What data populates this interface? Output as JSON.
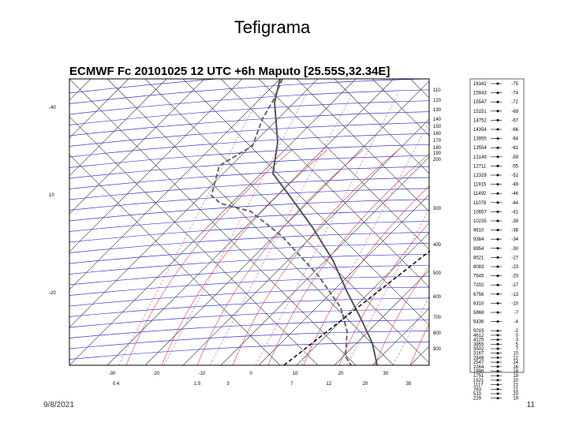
{
  "slide": {
    "title": "Tefigrama",
    "date": "9/8/2021",
    "number": "11"
  },
  "colors": {
    "isobar": "#3b3bc8",
    "isotherm": "#333333",
    "dry_adiabat": "#d23c3c",
    "mixing_ratio": "#e05aa8",
    "temperature": "#555555",
    "dewpoint": "#666666",
    "parcel": "#111111"
  },
  "chart_data": {
    "type": "line",
    "title": "ECMWF Fc 20101025 12 UTC +6h Maputo [25.55S,32.34E]",
    "pressure_labels": [
      "110",
      "120",
      "130",
      "140",
      "150",
      "160",
      "170",
      "180",
      "190",
      "200",
      "300",
      "400",
      "500",
      "600",
      "700",
      "800",
      "900"
    ],
    "temperature_ticks": [
      "-30",
      "-20",
      "-10",
      "0",
      "10",
      "20",
      "30"
    ],
    "mixing_ratio_ticks": [
      "0.4",
      "1.5",
      "3",
      "7",
      "12",
      "20",
      "35"
    ],
    "left_axis_labels": [
      "-40",
      "10",
      "-20"
    ],
    "height_table": {
      "heights": [
        "16342",
        "15943",
        "15547",
        "15151",
        "14752",
        "14354",
        "13955",
        "13554",
        "13149",
        "12711",
        "12329",
        "11915",
        "11492",
        "11078",
        "10657",
        "10235",
        "9810",
        "9384",
        "8954",
        "8521",
        "8083",
        "7645",
        "7202",
        "6756",
        "6310",
        "5868",
        "5436",
        "5015",
        "4612",
        "4225",
        "3855",
        "3502",
        "3167",
        "2848",
        "2547",
        "2264",
        "1996",
        "1751",
        "1521",
        "1117",
        "783",
        "510",
        "229"
      ],
      "temperatures": [
        "-75",
        "-74",
        "-72",
        "-69",
        "-67",
        "-66",
        "-64",
        "-61",
        "-59",
        "-55",
        "-51",
        "-49",
        "-46",
        "-44",
        "-41",
        "-39",
        "-36",
        "-34",
        "-30",
        "-27",
        "-23",
        "-20",
        "-17",
        "-13",
        "-10",
        "-7",
        "-4",
        "-2",
        "0",
        "3",
        "5",
        "7",
        "10",
        "12",
        "14",
        "16",
        "18",
        "19",
        "20",
        "21",
        "21",
        "20",
        "19"
      ]
    }
  }
}
